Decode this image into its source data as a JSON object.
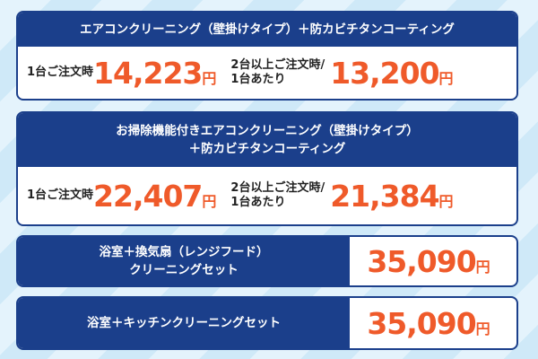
{
  "cards": [
    {
      "title": [
        "エアコンクリーニング（壁掛けタイプ）＋防カビチタンコーティング"
      ],
      "prices": [
        {
          "label": [
            "1台ご注文時"
          ],
          "amount": "14,223",
          "unit": "円"
        },
        {
          "label": [
            "2台以上ご注文時/",
            "1台あたり"
          ],
          "amount": "13,200",
          "unit": "円"
        }
      ]
    },
    {
      "title": [
        "お掃除機能付きエアコンクリーニング（壁掛けタイプ）",
        "＋防カビチタンコーティング"
      ],
      "prices": [
        {
          "label": [
            "1台ご注文時"
          ],
          "amount": "22,407",
          "unit": "円"
        },
        {
          "label": [
            "2台以上ご注文時/",
            "1台あたり"
          ],
          "amount": "21,384",
          "unit": "円"
        }
      ]
    },
    {
      "title": [
        "浴室＋換気扇（レンジフード）",
        "クリーニングセット"
      ],
      "prices": [
        {
          "amount": "35,090",
          "unit": "円"
        }
      ]
    },
    {
      "title": [
        "浴室＋キッチンクリーニングセット"
      ],
      "prices": [
        {
          "amount": "35,090",
          "unit": "円"
        }
      ]
    }
  ]
}
